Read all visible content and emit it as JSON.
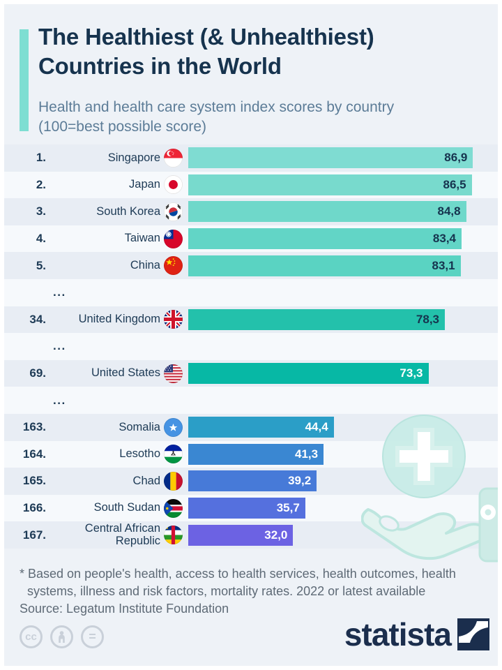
{
  "chart_data": {
    "type": "bar",
    "title": "The Healthiest (& Unhealthiest) Countries in the World",
    "subtitle": "Health and health care system index scores by country (100=best possible score)",
    "xlim": [
      0,
      100
    ],
    "value_format": "decimal-comma",
    "rows": [
      {
        "rank": "1.",
        "country": "Singapore",
        "flag": "sg",
        "value": 86.9,
        "display": "86,9",
        "bar_color": "#7fdcd2",
        "value_color": "#16334e"
      },
      {
        "rank": "2.",
        "country": "Japan",
        "flag": "jp",
        "value": 86.5,
        "display": "86,5",
        "bar_color": "#78dacd",
        "value_color": "#16334e"
      },
      {
        "rank": "3.",
        "country": "South Korea",
        "flag": "kr",
        "value": 84.8,
        "display": "84,8",
        "bar_color": "#6fd8ca",
        "value_color": "#16334e"
      },
      {
        "rank": "4.",
        "country": "Taiwan",
        "flag": "tw",
        "value": 83.4,
        "display": "83,4",
        "bar_color": "#62d5c6",
        "value_color": "#16334e"
      },
      {
        "rank": "5.",
        "country": "China",
        "flag": "cn",
        "value": 83.1,
        "display": "83,1",
        "bar_color": "#5ad3c2",
        "value_color": "#16334e"
      },
      {
        "ellipsis": true,
        "label": "..."
      },
      {
        "rank": "34.",
        "country": "United Kingdom",
        "flag": "gb",
        "value": 78.3,
        "display": "78,3",
        "bar_color": "#23c1ab",
        "value_color": "#16334e"
      },
      {
        "ellipsis": true,
        "label": "..."
      },
      {
        "rank": "69.",
        "country": "United States",
        "flag": "us",
        "value": 73.3,
        "display": "73,3",
        "bar_color": "#07b8a5",
        "value_color": "#ffffff"
      },
      {
        "ellipsis": true,
        "label": "..."
      },
      {
        "rank": "163.",
        "country": "Somalia",
        "flag": "so",
        "value": 44.4,
        "display": "44,4",
        "bar_color": "#2b9ec7",
        "value_color": "#ffffff"
      },
      {
        "rank": "164.",
        "country": "Lesotho",
        "flag": "ls",
        "value": 41.3,
        "display": "41,3",
        "bar_color": "#3a87d2",
        "value_color": "#ffffff"
      },
      {
        "rank": "165.",
        "country": "Chad",
        "flag": "td",
        "value": 39.2,
        "display": "39,2",
        "bar_color": "#477ad8",
        "value_color": "#ffffff"
      },
      {
        "rank": "166.",
        "country": "South Sudan",
        "flag": "ss",
        "value": 35.7,
        "display": "35,7",
        "bar_color": "#5570de",
        "value_color": "#ffffff"
      },
      {
        "rank": "167.",
        "country": "Central African Republic",
        "flag": "cf",
        "value": 32.0,
        "display": "32,0",
        "bar_color": "#6c62e3",
        "value_color": "#ffffff"
      }
    ]
  },
  "footer": {
    "note": "* Based on people's health, access to health services, health outcomes, health systems, illness and risk factors, mortality rates. 2022 or latest available",
    "source": "Source: Legatum Institute Foundation",
    "license_icons": [
      "cc-icon",
      "person-icon",
      "equals-icon"
    ],
    "cc_label": "cc",
    "equals_label": "=",
    "brand": "statista"
  },
  "colors": {
    "accent": "#7eded2",
    "navy": "#16334e",
    "stripe_dark": "#e8edf4",
    "stripe_light": "#f6f9fc",
    "background": "#eef2f7",
    "illustration": "#cdebe6"
  }
}
